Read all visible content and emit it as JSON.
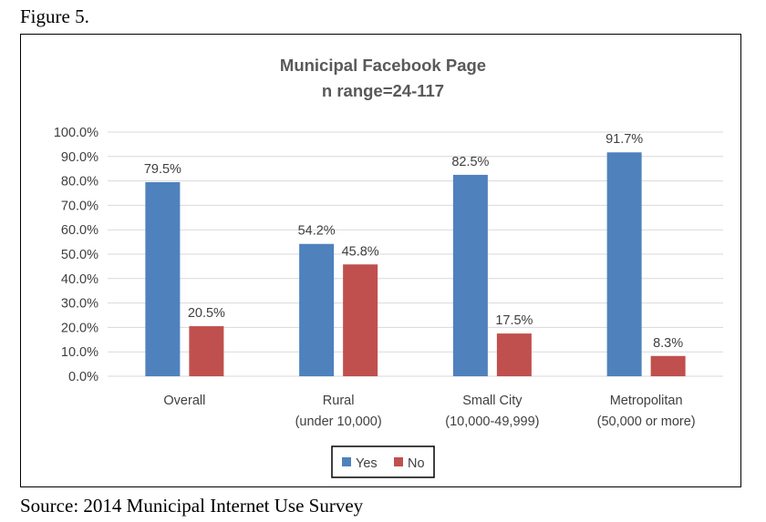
{
  "figure_label": "Figure 5.",
  "source": "Source: 2014 Municipal Internet Use Survey",
  "colors": {
    "yes": "#4f81bd",
    "no": "#c0504d",
    "grid": "#d9d9d9",
    "text": "#404040"
  },
  "chart_data": {
    "type": "bar",
    "title": "Municipal Facebook Page",
    "subtitle": "n range=24-117",
    "categories": [
      [
        "Overall"
      ],
      [
        "Rural",
        "(under 10,000)"
      ],
      [
        "Small City",
        "(10,000-49,999)"
      ],
      [
        "Metropolitan",
        "(50,000 or more)"
      ]
    ],
    "series": [
      {
        "name": "Yes",
        "values": [
          79.5,
          54.2,
          82.5,
          91.7
        ],
        "labels": [
          "79.5%",
          "54.2%",
          "82.5%",
          "91.7%"
        ]
      },
      {
        "name": "No",
        "values": [
          20.5,
          45.8,
          17.5,
          8.3
        ],
        "labels": [
          "20.5%",
          "45.8%",
          "17.5%",
          "8.3%"
        ]
      }
    ],
    "ylim": [
      0,
      100
    ],
    "yticks": [
      "0.0%",
      "10.0%",
      "20.0%",
      "30.0%",
      "40.0%",
      "50.0%",
      "60.0%",
      "70.0%",
      "80.0%",
      "90.0%",
      "100.0%"
    ],
    "grid": true,
    "legend": "bottom-center"
  }
}
